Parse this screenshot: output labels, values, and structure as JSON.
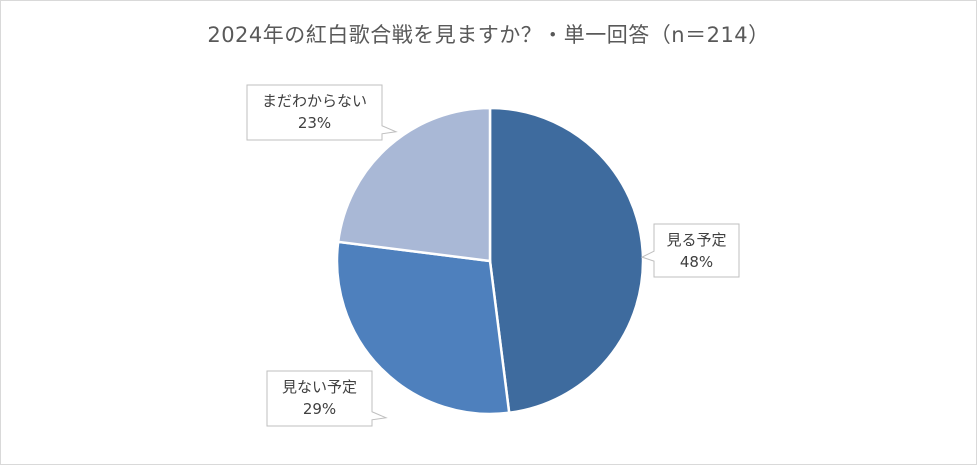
{
  "title": "2024年の紅白歌合戦を見ますか？・単一回答（n＝214）",
  "chart_data": {
    "type": "pie",
    "title": "2024年の紅白歌合戦を見ますか？・単一回答（n＝214）",
    "slices": [
      {
        "label": "見る予定",
        "value": 48,
        "value_label": "48%",
        "color": "#3e6b9e"
      },
      {
        "label": "見ない予定",
        "value": 29,
        "value_label": "29%",
        "color": "#4e80bd"
      },
      {
        "label": "まだわからない",
        "value": 23,
        "value_label": "23%",
        "color": "#a9b8d6"
      }
    ],
    "start_angle": "12 o'clock",
    "direction": "clockwise",
    "legend": "none",
    "label_style": "callout"
  }
}
